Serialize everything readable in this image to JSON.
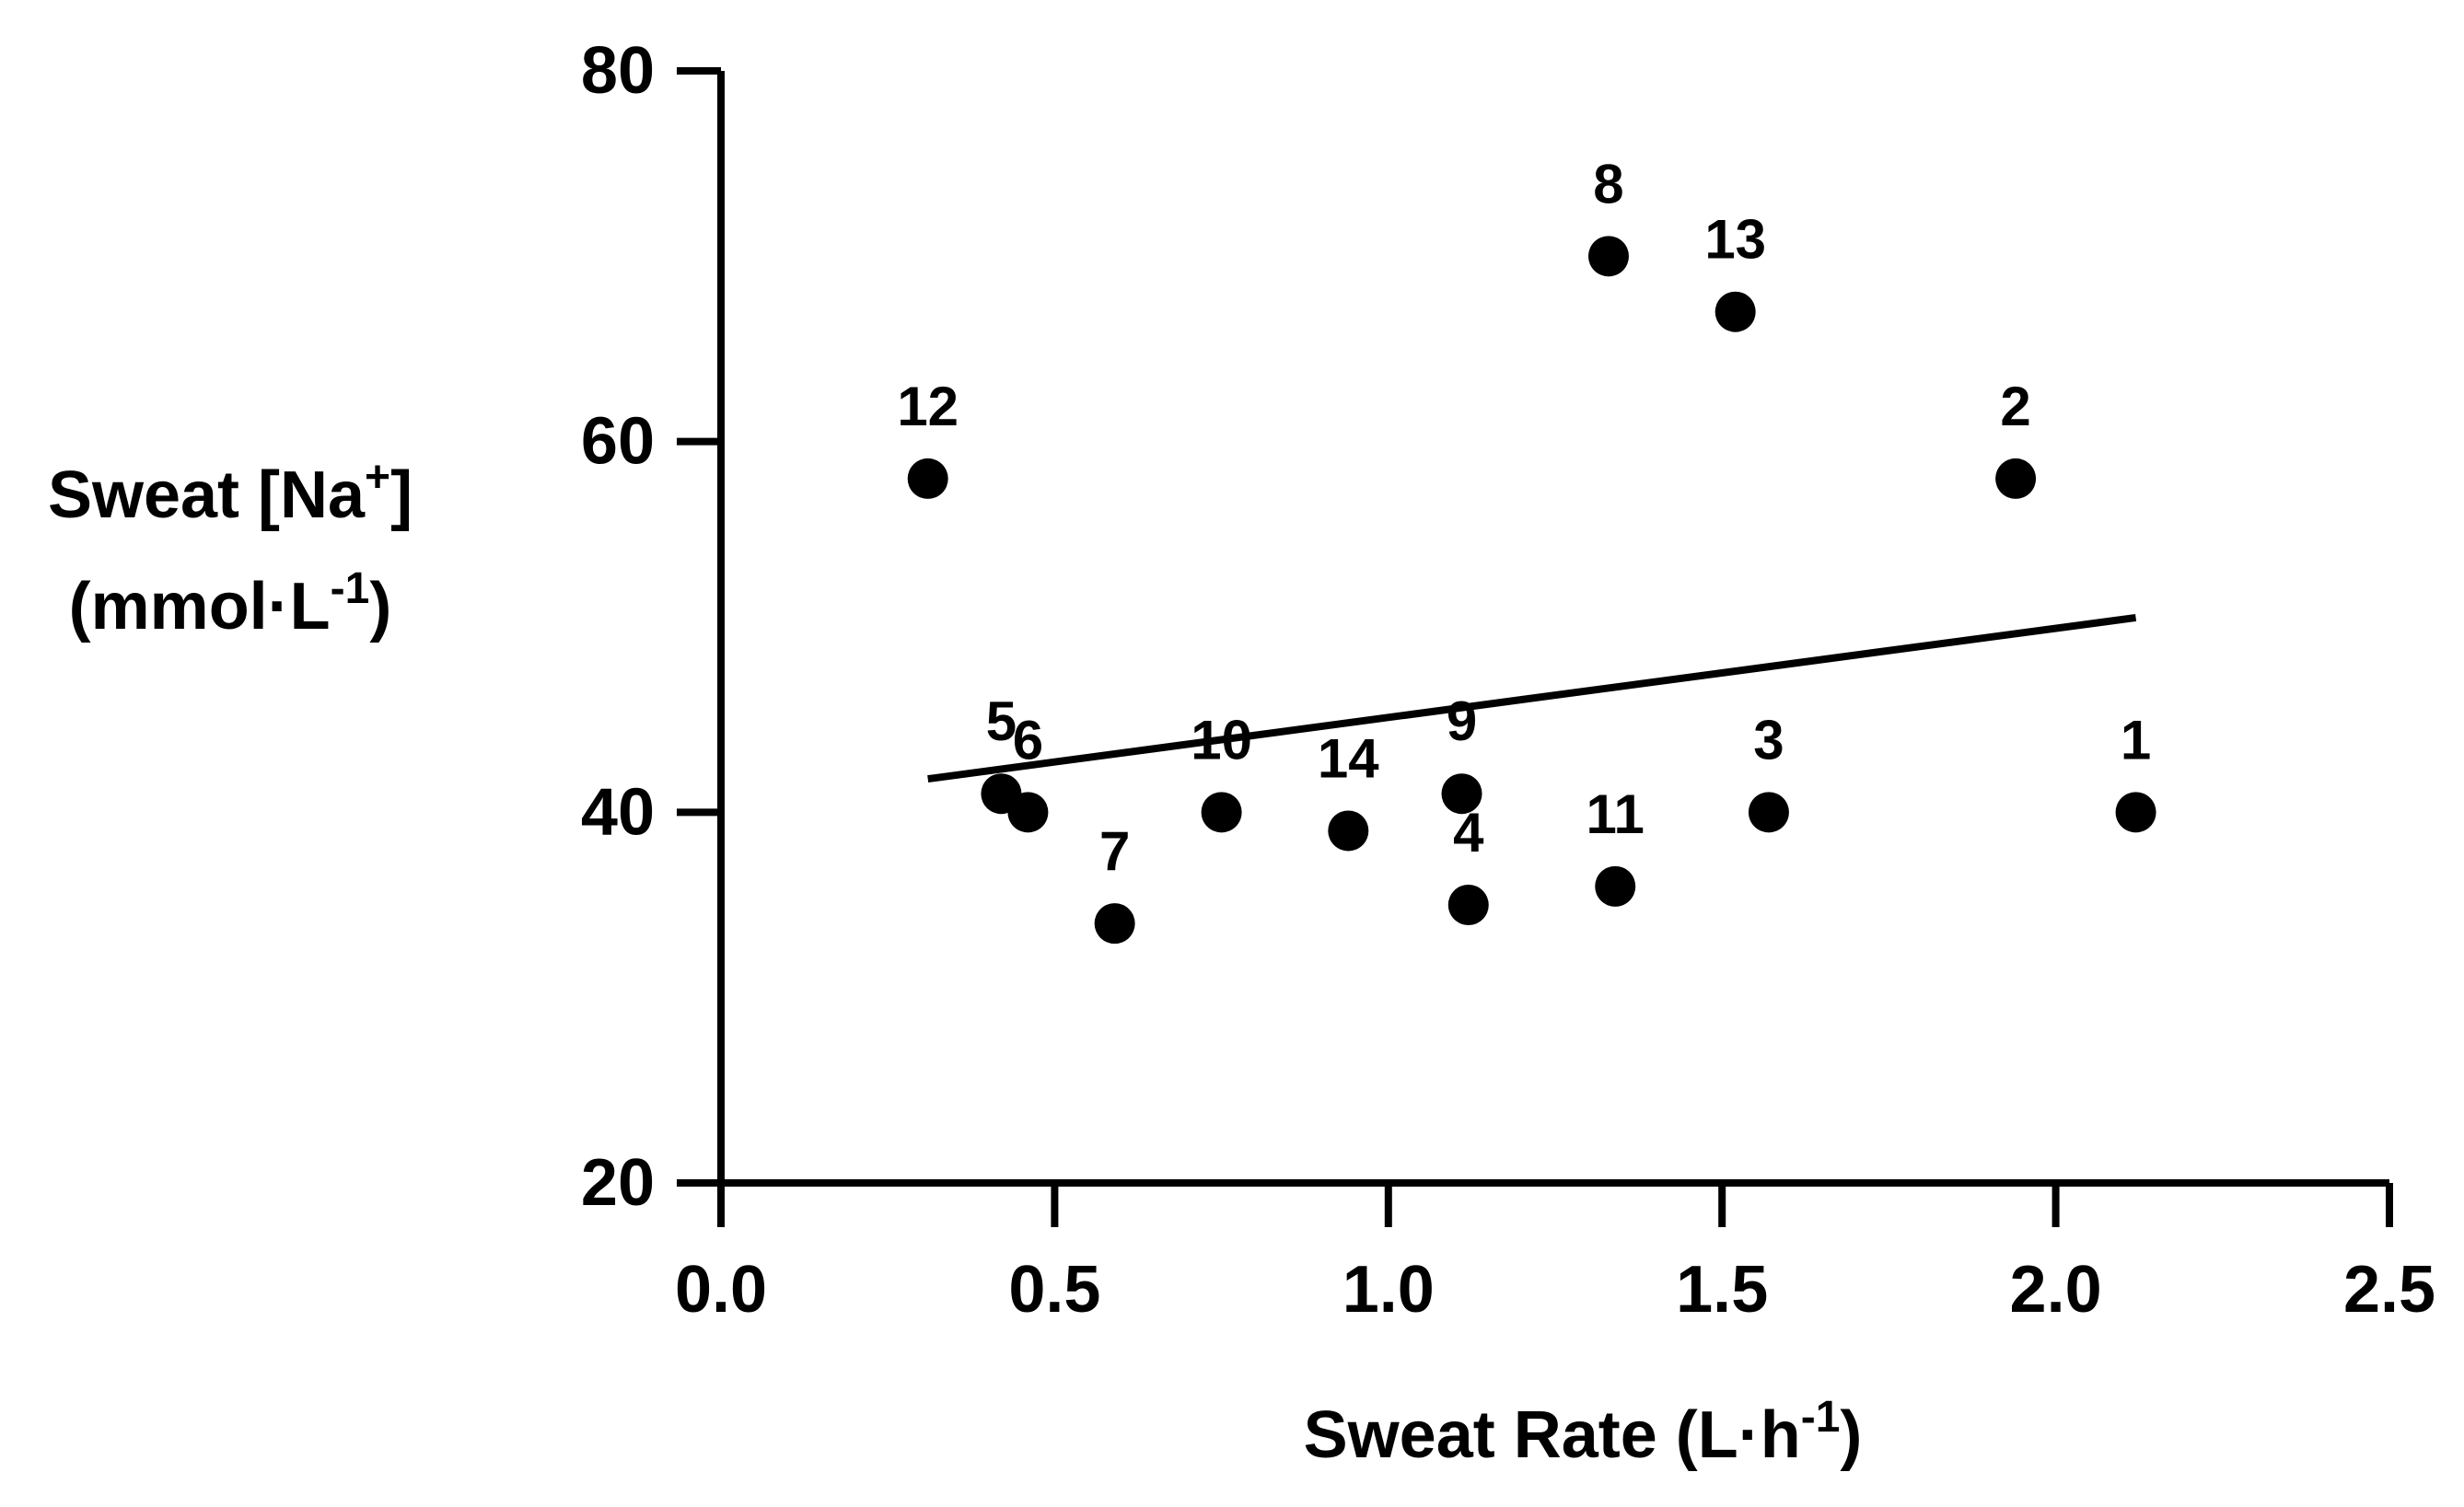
{
  "chart_data": {
    "type": "scatter",
    "title": "",
    "xlabel": {
      "main": "Sweat Rate (L·h",
      "sup": "-1",
      "tail": ")"
    },
    "ylabel": {
      "line1_main": "Sweat [Na",
      "line1_sup": "+",
      "line1_tail": "]",
      "line2_main": "(mmol·L",
      "line2_sup": "-1",
      "line2_tail": ")"
    },
    "xlim": [
      0,
      2.5
    ],
    "ylim": [
      20,
      80
    ],
    "x_ticks": [
      {
        "value": 0,
        "label": "0.0"
      },
      {
        "value": 0.5,
        "label": "0.5"
      },
      {
        "value": 1.0,
        "label": "1.0"
      },
      {
        "value": 1.5,
        "label": "1.5"
      },
      {
        "value": 2.0,
        "label": "2.0"
      },
      {
        "value": 2.5,
        "label": "2.5"
      }
    ],
    "y_ticks": [
      {
        "value": 20,
        "label": "20"
      },
      {
        "value": 40,
        "label": "40"
      },
      {
        "value": 60,
        "label": "60"
      },
      {
        "value": 80,
        "label": "80"
      }
    ],
    "grid": false,
    "points": [
      {
        "label": "1",
        "x": 2.12,
        "y": 40
      },
      {
        "label": "2",
        "x": 1.94,
        "y": 58
      },
      {
        "label": "3",
        "x": 1.57,
        "y": 40
      },
      {
        "label": "4",
        "x": 1.12,
        "y": 35
      },
      {
        "label": "5",
        "x": 0.42,
        "y": 41
      },
      {
        "label": "6",
        "x": 0.46,
        "y": 40
      },
      {
        "label": "7",
        "x": 0.59,
        "y": 34
      },
      {
        "label": "8",
        "x": 1.33,
        "y": 70
      },
      {
        "label": "9",
        "x": 1.11,
        "y": 41
      },
      {
        "label": "10",
        "x": 0.75,
        "y": 40
      },
      {
        "label": "11",
        "x": 1.34,
        "y": 36
      },
      {
        "label": "12",
        "x": 0.31,
        "y": 58
      },
      {
        "label": "13",
        "x": 1.52,
        "y": 67
      },
      {
        "label": "14",
        "x": 0.94,
        "y": 39
      }
    ],
    "regression_line": {
      "x": [
        0.31,
        2.12
      ],
      "y": [
        41.8,
        50.5
      ]
    },
    "colors": {
      "ink": "#000000",
      "background": "#ffffff"
    }
  }
}
